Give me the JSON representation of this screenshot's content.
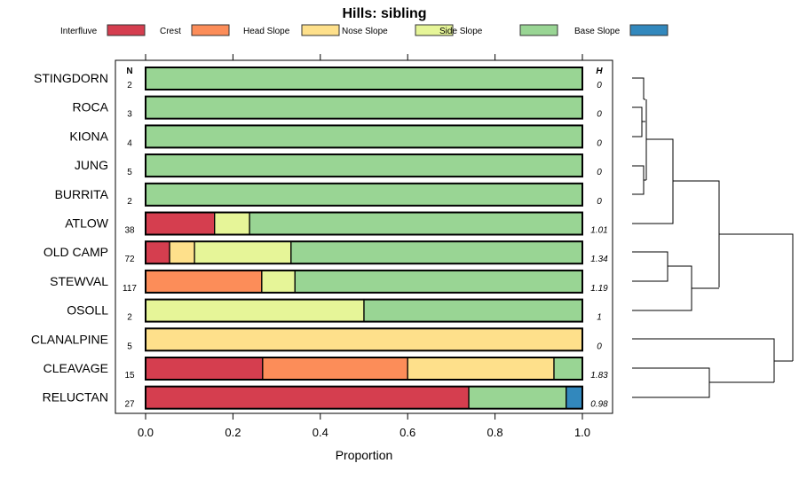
{
  "chart_data": {
    "type": "bar",
    "stacked": true,
    "orientation": "horizontal",
    "title": "Hills: sibling",
    "xlabel": "Proportion",
    "xlim": [
      0,
      1
    ],
    "xticks": [
      "0.0",
      "0.2",
      "0.4",
      "0.6",
      "0.8",
      "1.0"
    ],
    "n_header": "N",
    "h_header": "H",
    "legend_position": "top",
    "series": [
      {
        "name": "Interfluve",
        "color": "#D53E4F"
      },
      {
        "name": "Crest",
        "color": "#FC8D59"
      },
      {
        "name": "Head Slope",
        "color": "#FEE08B"
      },
      {
        "name": "Nose Slope",
        "color": "#E6F598"
      },
      {
        "name": "Side Slope",
        "color": "#99D594"
      },
      {
        "name": "Base Slope",
        "color": "#3288BD"
      }
    ],
    "categories": [
      {
        "label": "STINGDORN",
        "n": "2",
        "h": "0",
        "values": [
          0,
          0,
          0,
          0,
          1,
          0
        ]
      },
      {
        "label": "ROCA",
        "n": "3",
        "h": "0",
        "values": [
          0,
          0,
          0,
          0,
          1,
          0
        ]
      },
      {
        "label": "KIONA",
        "n": "4",
        "h": "0",
        "values": [
          0,
          0,
          0,
          0,
          1,
          0
        ]
      },
      {
        "label": "JUNG",
        "n": "5",
        "h": "0",
        "values": [
          0,
          0,
          0,
          0,
          1,
          0
        ]
      },
      {
        "label": "BURRITA",
        "n": "2",
        "h": "0",
        "values": [
          0,
          0,
          0,
          0,
          1,
          0
        ]
      },
      {
        "label": "ATLOW",
        "n": "38",
        "h": "1.01",
        "values": [
          0.158,
          0,
          0,
          0.08,
          0.762,
          0
        ]
      },
      {
        "label": "OLD CAMP",
        "n": "72",
        "h": "1.34",
        "values": [
          0.055,
          0,
          0.057,
          0.221,
          0.667,
          0
        ]
      },
      {
        "label": "STEWVAL",
        "n": "117",
        "h": "1.19",
        "values": [
          0,
          0.266,
          0,
          0.076,
          0.658,
          0
        ]
      },
      {
        "label": "OSOLL",
        "n": "2",
        "h": "1",
        "values": [
          0,
          0,
          0,
          0.5,
          0.5,
          0
        ]
      },
      {
        "label": "CLANALPINE",
        "n": "5",
        "h": "0",
        "values": [
          0,
          0,
          1,
          0,
          0,
          0
        ]
      },
      {
        "label": "CLEAVAGE",
        "n": "15",
        "h": "1.83",
        "values": [
          0.268,
          0.332,
          0.335,
          0,
          0.065,
          0
        ]
      },
      {
        "label": "RELUCTAN",
        "n": "27",
        "h": "0.98",
        "values": [
          0.74,
          0,
          0,
          0,
          0.223,
          0.037
        ]
      }
    ]
  }
}
